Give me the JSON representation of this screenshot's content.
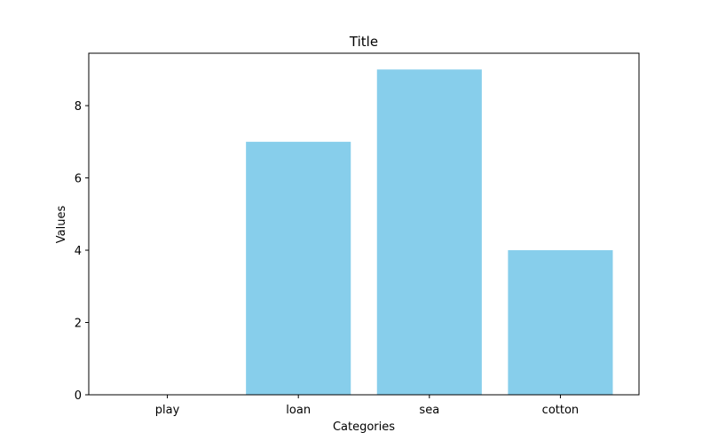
{
  "chart_data": {
    "type": "bar",
    "title": "Title",
    "xlabel": "Categories",
    "ylabel": "Values",
    "categories": [
      "play",
      "loan",
      "sea",
      "cotton"
    ],
    "values": [
      0,
      7,
      9,
      4
    ],
    "ylim": [
      0,
      9.45
    ],
    "yticks": [
      0,
      2,
      4,
      6,
      8
    ],
    "bar_color": "#87ceeb",
    "grid": false,
    "legend": "none"
  }
}
